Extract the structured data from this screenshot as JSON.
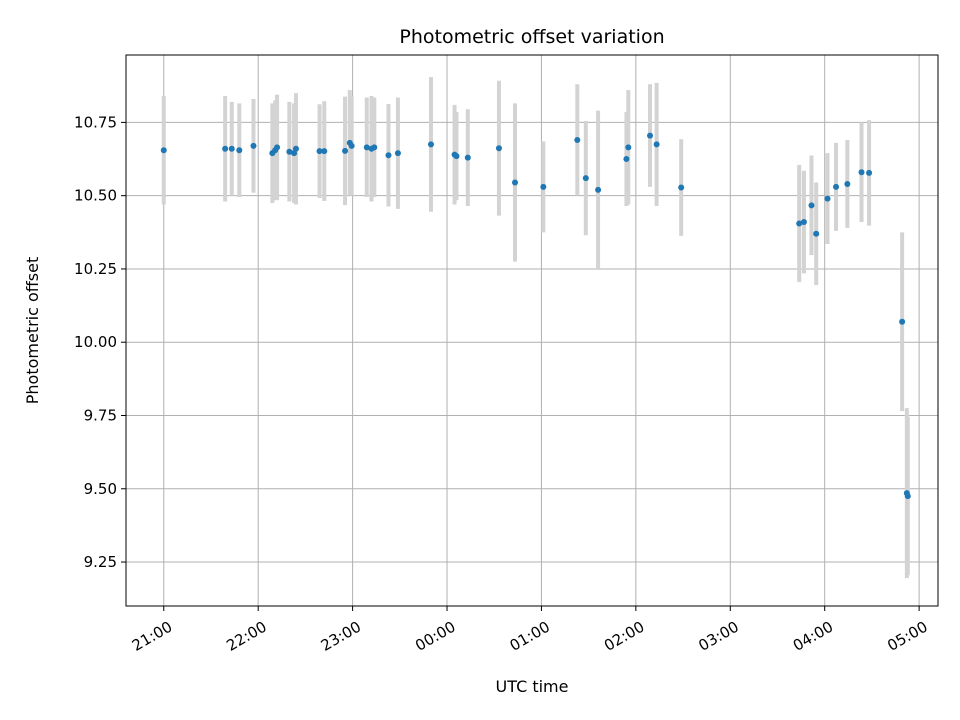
{
  "chart_data": {
    "type": "scatter",
    "title": "Photometric offset variation",
    "xlabel": "UTC time",
    "ylabel": "Photometric offset",
    "x_unit": "hours",
    "xlim": [
      20.6,
      29.2
    ],
    "ylim": [
      9.1,
      10.98
    ],
    "x_ticks": [
      21,
      22,
      23,
      24,
      25,
      26,
      27,
      28,
      29
    ],
    "x_tick_labels": [
      "21:00",
      "22:00",
      "23:00",
      "00:00",
      "01:00",
      "02:00",
      "03:00",
      "04:00",
      "05:00"
    ],
    "y_ticks": [
      9.25,
      9.5,
      9.75,
      10.0,
      10.25,
      10.5,
      10.75
    ],
    "y_tick_labels": [
      "9.25",
      "9.50",
      "9.75",
      "10.00",
      "10.25",
      "10.50",
      "10.75"
    ],
    "grid": true,
    "colors": {
      "point": "#1f77b4",
      "errorbar": "#d3d3d3",
      "grid": "#b0b0b0"
    },
    "points": [
      {
        "x": 21.0,
        "y": 10.655,
        "err": 0.185
      },
      {
        "x": 21.65,
        "y": 10.66,
        "err": 0.18
      },
      {
        "x": 21.72,
        "y": 10.66,
        "err": 0.16
      },
      {
        "x": 21.8,
        "y": 10.655,
        "err": 0.16
      },
      {
        "x": 21.95,
        "y": 10.67,
        "err": 0.16
      },
      {
        "x": 22.15,
        "y": 10.645,
        "err": 0.17
      },
      {
        "x": 22.18,
        "y": 10.655,
        "err": 0.17
      },
      {
        "x": 22.2,
        "y": 10.665,
        "err": 0.18
      },
      {
        "x": 22.33,
        "y": 10.65,
        "err": 0.17
      },
      {
        "x": 22.38,
        "y": 10.645,
        "err": 0.17
      },
      {
        "x": 22.4,
        "y": 10.66,
        "err": 0.19
      },
      {
        "x": 22.65,
        "y": 10.652,
        "err": 0.16
      },
      {
        "x": 22.7,
        "y": 10.652,
        "err": 0.17
      },
      {
        "x": 22.92,
        "y": 10.653,
        "err": 0.185
      },
      {
        "x": 22.97,
        "y": 10.68,
        "err": 0.18
      },
      {
        "x": 22.99,
        "y": 10.67,
        "err": 0.17
      },
      {
        "x": 23.15,
        "y": 10.665,
        "err": 0.17
      },
      {
        "x": 23.2,
        "y": 10.66,
        "err": 0.18
      },
      {
        "x": 23.23,
        "y": 10.665,
        "err": 0.17
      },
      {
        "x": 23.38,
        "y": 10.638,
        "err": 0.175
      },
      {
        "x": 23.48,
        "y": 10.645,
        "err": 0.19
      },
      {
        "x": 23.83,
        "y": 10.675,
        "err": 0.23
      },
      {
        "x": 24.08,
        "y": 10.64,
        "err": 0.17
      },
      {
        "x": 24.1,
        "y": 10.635,
        "err": 0.15
      },
      {
        "x": 24.22,
        "y": 10.63,
        "err": 0.165
      },
      {
        "x": 24.55,
        "y": 10.662,
        "err": 0.23
      },
      {
        "x": 24.72,
        "y": 10.545,
        "err": 0.27
      },
      {
        "x": 25.02,
        "y": 10.53,
        "err": 0.155
      },
      {
        "x": 25.38,
        "y": 10.69,
        "err": 0.19
      },
      {
        "x": 25.47,
        "y": 10.56,
        "err": 0.195
      },
      {
        "x": 25.6,
        "y": 10.52,
        "err": 0.27
      },
      {
        "x": 25.9,
        "y": 10.625,
        "err": 0.16
      },
      {
        "x": 25.92,
        "y": 10.665,
        "err": 0.195
      },
      {
        "x": 26.15,
        "y": 10.705,
        "err": 0.175
      },
      {
        "x": 26.22,
        "y": 10.675,
        "err": 0.21
      },
      {
        "x": 26.48,
        "y": 10.528,
        "err": 0.165
      },
      {
        "x": 27.73,
        "y": 10.405,
        "err": 0.2
      },
      {
        "x": 27.78,
        "y": 10.41,
        "err": 0.175
      },
      {
        "x": 27.86,
        "y": 10.467,
        "err": 0.17
      },
      {
        "x": 27.91,
        "y": 10.37,
        "err": 0.175
      },
      {
        "x": 28.03,
        "y": 10.49,
        "err": 0.155
      },
      {
        "x": 28.12,
        "y": 10.53,
        "err": 0.15
      },
      {
        "x": 28.24,
        "y": 10.54,
        "err": 0.15
      },
      {
        "x": 28.39,
        "y": 10.58,
        "err": 0.17
      },
      {
        "x": 28.47,
        "y": 10.578,
        "err": 0.18
      },
      {
        "x": 28.82,
        "y": 10.07,
        "err": 0.305
      },
      {
        "x": 28.87,
        "y": 9.485,
        "err": 0.29
      },
      {
        "x": 28.88,
        "y": 9.475,
        "err": 0.27
      }
    ]
  }
}
